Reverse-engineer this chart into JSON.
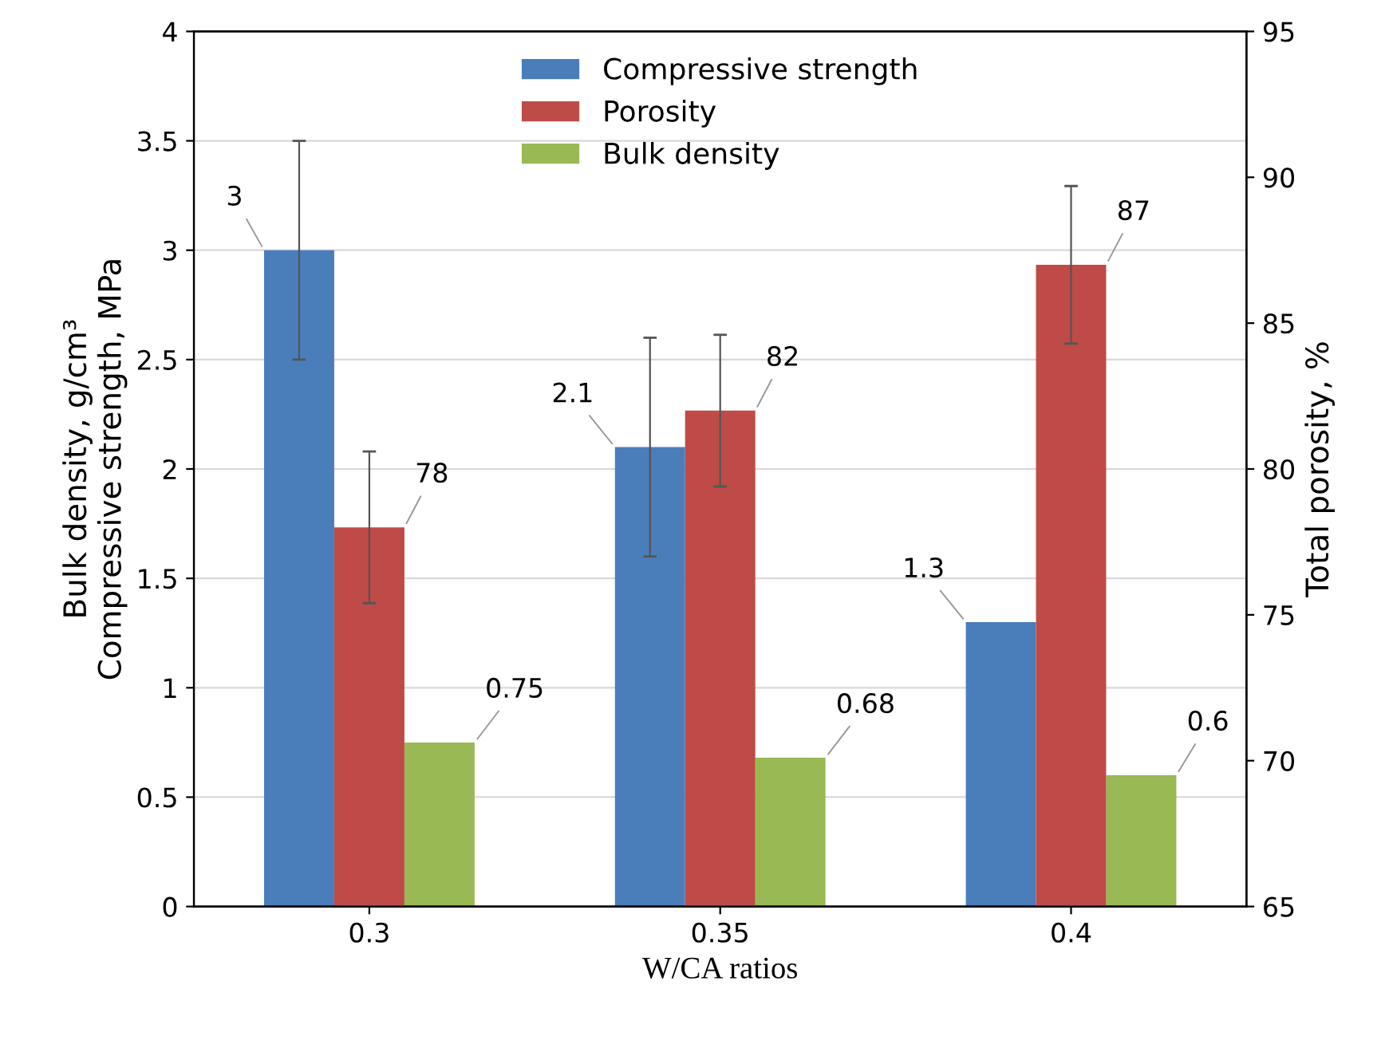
{
  "chart_data": {
    "type": "bar",
    "xlabel": "W/CA ratios",
    "ylabel": "Bulk density, g/cm³\nCompressive strength, MPa",
    "y2label": "Total porosity, %",
    "categories": [
      "0.3",
      "0.35",
      "0.4"
    ],
    "series": [
      {
        "name": "Compressive strength",
        "color": "#4a7ebb",
        "values": [
          3,
          2.1,
          1.3
        ],
        "errors": [
          0.5,
          0.5,
          null
        ]
      },
      {
        "name": "Porosity",
        "color": "#be4b48",
        "values": [
          78,
          82,
          87
        ],
        "errors": [
          2.6,
          2.6,
          2.7
        ],
        "axis": "y2"
      },
      {
        "name": "Bulk density",
        "color": "#98b954",
        "values": [
          0.75,
          0.68,
          0.6
        ]
      }
    ],
    "ylim": [
      0,
      4
    ],
    "yticks": [
      0,
      0.5,
      1,
      1.5,
      2,
      2.5,
      3,
      3.5,
      4
    ],
    "y2lim": [
      65,
      95
    ],
    "y2ticks": [
      65,
      70,
      75,
      80,
      85,
      90,
      95
    ],
    "data_labels": true,
    "grid": "y",
    "legend": "top"
  }
}
